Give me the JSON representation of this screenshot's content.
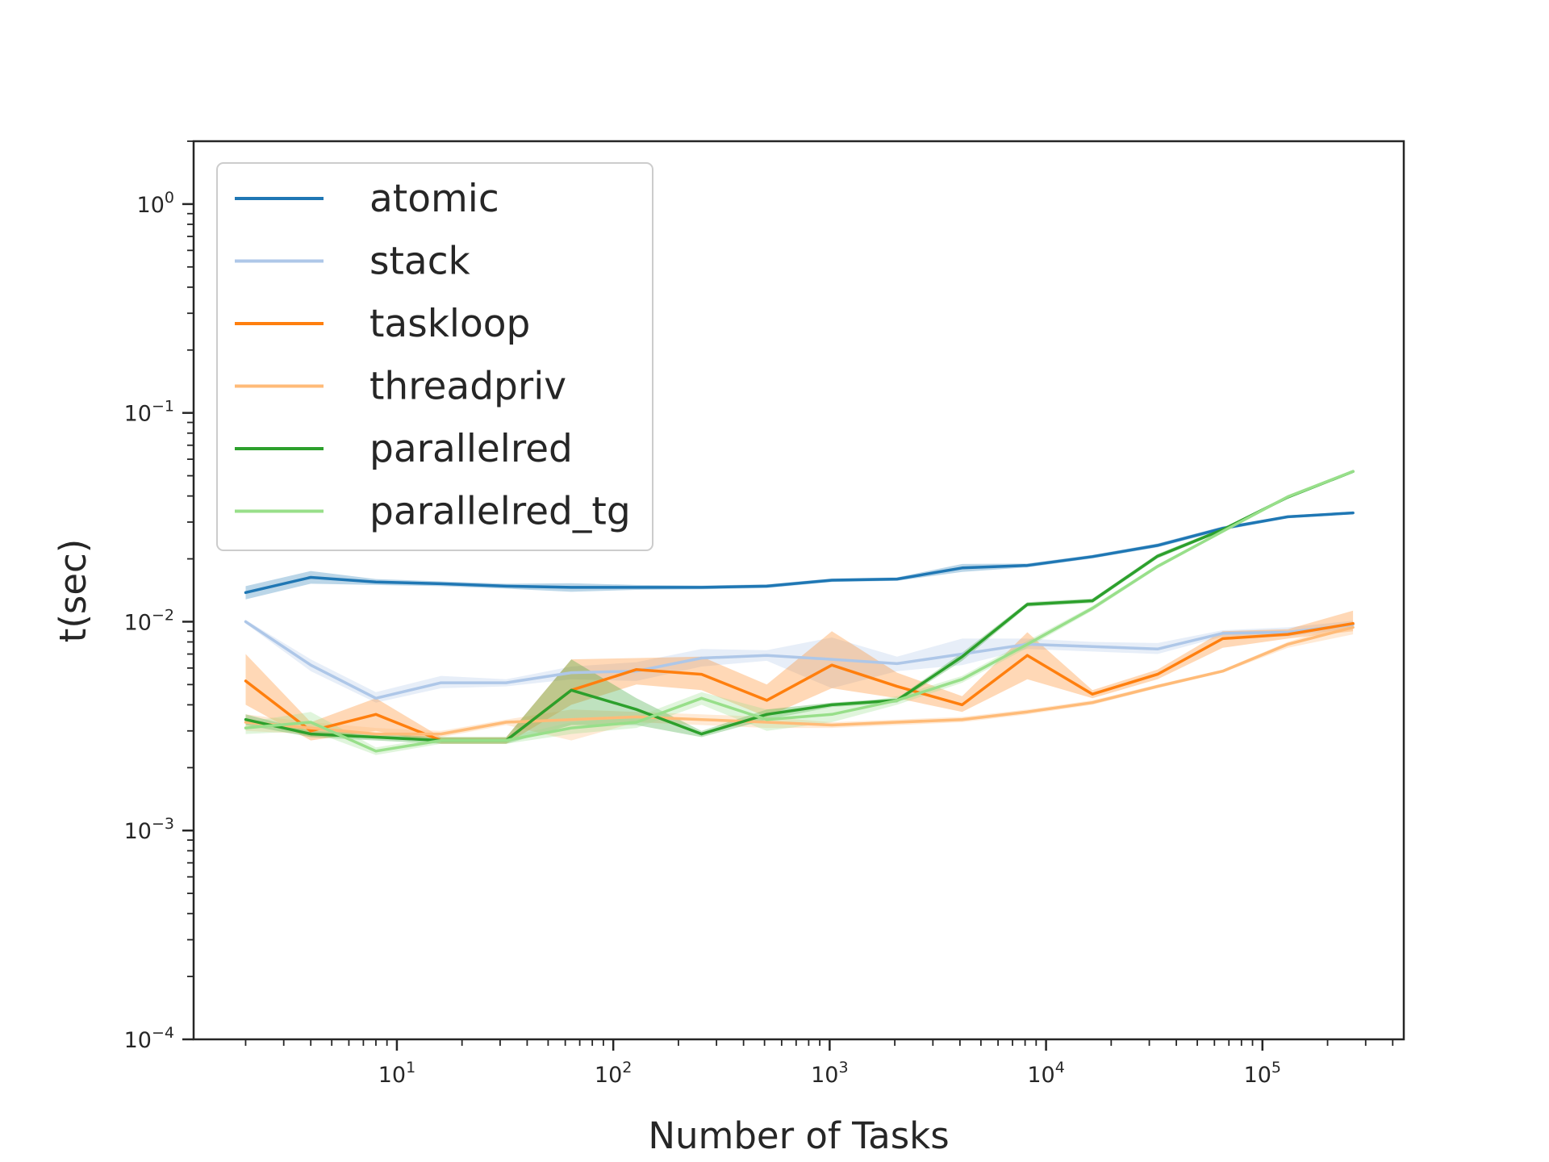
{
  "chart_data": {
    "type": "line",
    "title": "",
    "xlabel": "Number of Tasks",
    "ylabel": "t(sec)",
    "xscale": "log",
    "yscale": "log",
    "xlim": [
      1.15,
      450000
    ],
    "ylim": [
      0.0001,
      2.0
    ],
    "x_ticks": [
      {
        "base": "10",
        "exp": "1",
        "value": 10
      },
      {
        "base": "10",
        "exp": "2",
        "value": 100
      },
      {
        "base": "10",
        "exp": "3",
        "value": 1000
      },
      {
        "base": "10",
        "exp": "4",
        "value": 10000
      },
      {
        "base": "10",
        "exp": "5",
        "value": 100000
      }
    ],
    "y_ticks": [
      {
        "base": "10",
        "exp": "0",
        "value": 1
      },
      {
        "base": "10",
        "exp": "−1",
        "value": 0.1
      },
      {
        "base": "10",
        "exp": "−2",
        "value": 0.01
      },
      {
        "base": "10",
        "exp": "−3",
        "value": 0.001
      },
      {
        "base": "10",
        "exp": "−4",
        "value": 0.0001
      }
    ],
    "grid": false,
    "legend_position": "upper-left",
    "x": [
      2,
      4,
      8,
      16,
      32,
      64,
      128,
      256,
      512,
      1024,
      2048,
      4096,
      8192,
      16384,
      32768,
      65536,
      131072,
      262144
    ],
    "series": [
      {
        "name": "atomic",
        "color": "#1f77b4",
        "values": [
          0.0138,
          0.0163,
          0.0155,
          0.0152,
          0.0148,
          0.0146,
          0.0146,
          0.0146,
          0.0148,
          0.0158,
          0.016,
          0.0181,
          0.0186,
          0.0205,
          0.0232,
          0.028,
          0.0318,
          0.0332
        ],
        "lower": [
          0.0128,
          0.0152,
          0.015,
          0.0148,
          0.0144,
          0.0139,
          0.0142,
          0.0143,
          0.0145,
          0.0155,
          0.0157,
          0.0173,
          0.0182,
          0.0201,
          0.0227,
          0.0274,
          0.0313,
          0.0327
        ],
        "upper": [
          0.0148,
          0.0175,
          0.016,
          0.0156,
          0.0152,
          0.0153,
          0.015,
          0.0149,
          0.0151,
          0.0161,
          0.0163,
          0.0189,
          0.019,
          0.0209,
          0.0237,
          0.0286,
          0.0323,
          0.0337
        ]
      },
      {
        "name": "stack",
        "color": "#aec7e8",
        "values": [
          0.01,
          0.0062,
          0.0043,
          0.0051,
          0.0051,
          0.0057,
          0.0058,
          0.0067,
          0.0069,
          0.0066,
          0.0063,
          0.007,
          0.0078,
          0.0076,
          0.0074,
          0.0088,
          0.0089,
          0.0097
        ],
        "lower": [
          0.0098,
          0.0058,
          0.0041,
          0.0048,
          0.0049,
          0.0053,
          0.0052,
          0.0061,
          0.0065,
          0.0048,
          0.0058,
          0.0062,
          0.0074,
          0.0072,
          0.007,
          0.0085,
          0.0085,
          0.0093
        ],
        "upper": [
          0.0102,
          0.0066,
          0.0046,
          0.0055,
          0.0053,
          0.0061,
          0.0064,
          0.0074,
          0.0073,
          0.0084,
          0.0068,
          0.0083,
          0.0083,
          0.008,
          0.0079,
          0.0091,
          0.0094,
          0.0101
        ]
      },
      {
        "name": "taskloop",
        "color": "#ff7f0e",
        "values": [
          0.0052,
          0.003,
          0.0036,
          0.0027,
          0.0027,
          0.0047,
          0.0059,
          0.0056,
          0.0042,
          0.0062,
          0.0049,
          0.004,
          0.0069,
          0.0045,
          0.0056,
          0.0083,
          0.0087,
          0.0098
        ],
        "lower": [
          0.004,
          0.0027,
          0.003,
          0.0026,
          0.0026,
          0.004,
          0.005,
          0.0047,
          0.0035,
          0.0048,
          0.0043,
          0.0037,
          0.0053,
          0.0043,
          0.0053,
          0.0075,
          0.0083,
          0.009
        ],
        "upper": [
          0.007,
          0.0033,
          0.0043,
          0.0028,
          0.0028,
          0.0066,
          0.0067,
          0.0068,
          0.005,
          0.009,
          0.0057,
          0.0044,
          0.0089,
          0.0047,
          0.0059,
          0.009,
          0.0092,
          0.0113
        ]
      },
      {
        "name": "threadpriv",
        "color": "#ffbb78",
        "values": [
          0.0033,
          0.0031,
          0.0029,
          0.0029,
          0.0033,
          0.0034,
          0.0035,
          0.0034,
          0.0033,
          0.0032,
          0.0033,
          0.0034,
          0.0037,
          0.0041,
          0.0049,
          0.0058,
          0.0078,
          0.0094
        ],
        "lower": [
          0.003,
          0.0029,
          0.0028,
          0.0028,
          0.0032,
          0.0027,
          0.0033,
          0.0032,
          0.0031,
          0.0031,
          0.0032,
          0.0033,
          0.0036,
          0.004,
          0.0048,
          0.0057,
          0.0075,
          0.0087
        ],
        "upper": [
          0.0036,
          0.0033,
          0.0031,
          0.003,
          0.0034,
          0.0038,
          0.0037,
          0.0036,
          0.0035,
          0.0033,
          0.0034,
          0.0035,
          0.0038,
          0.0042,
          0.005,
          0.0059,
          0.008,
          0.01
        ]
      },
      {
        "name": "parallelred",
        "color": "#2ca02c",
        "values": [
          0.0034,
          0.0029,
          0.0028,
          0.0027,
          0.0027,
          0.0047,
          0.0038,
          0.0029,
          0.0036,
          0.004,
          0.0042,
          0.0068,
          0.0121,
          0.0126,
          0.0206,
          0.0276,
          0.0395,
          0.0524
        ],
        "lower": [
          0.0032,
          0.0028,
          0.0027,
          0.0026,
          0.0026,
          0.0032,
          0.0032,
          0.0028,
          0.0034,
          0.0039,
          0.0041,
          0.0065,
          0.0118,
          0.0123,
          0.0201,
          0.0271,
          0.039,
          0.0516
        ],
        "upper": [
          0.0036,
          0.003,
          0.0029,
          0.0028,
          0.0028,
          0.0066,
          0.0043,
          0.003,
          0.0038,
          0.0041,
          0.0043,
          0.0071,
          0.0124,
          0.0129,
          0.0211,
          0.0281,
          0.04,
          0.0532
        ]
      },
      {
        "name": "parallelred_tg",
        "color": "#98df8a",
        "values": [
          0.0031,
          0.0033,
          0.0024,
          0.0027,
          0.0027,
          0.0031,
          0.0033,
          0.0043,
          0.0034,
          0.0036,
          0.0042,
          0.0053,
          0.0078,
          0.0116,
          0.0184,
          0.0271,
          0.0397,
          0.0525
        ],
        "lower": [
          0.0029,
          0.003,
          0.0023,
          0.0026,
          0.0026,
          0.0029,
          0.0031,
          0.004,
          0.003,
          0.0033,
          0.004,
          0.0051,
          0.0075,
          0.0113,
          0.018,
          0.0267,
          0.0392,
          0.0519
        ],
        "upper": [
          0.0033,
          0.0037,
          0.0025,
          0.0028,
          0.0028,
          0.0033,
          0.0035,
          0.0046,
          0.0038,
          0.0039,
          0.0044,
          0.0055,
          0.0081,
          0.0119,
          0.0188,
          0.0275,
          0.0402,
          0.0531
        ]
      }
    ]
  }
}
